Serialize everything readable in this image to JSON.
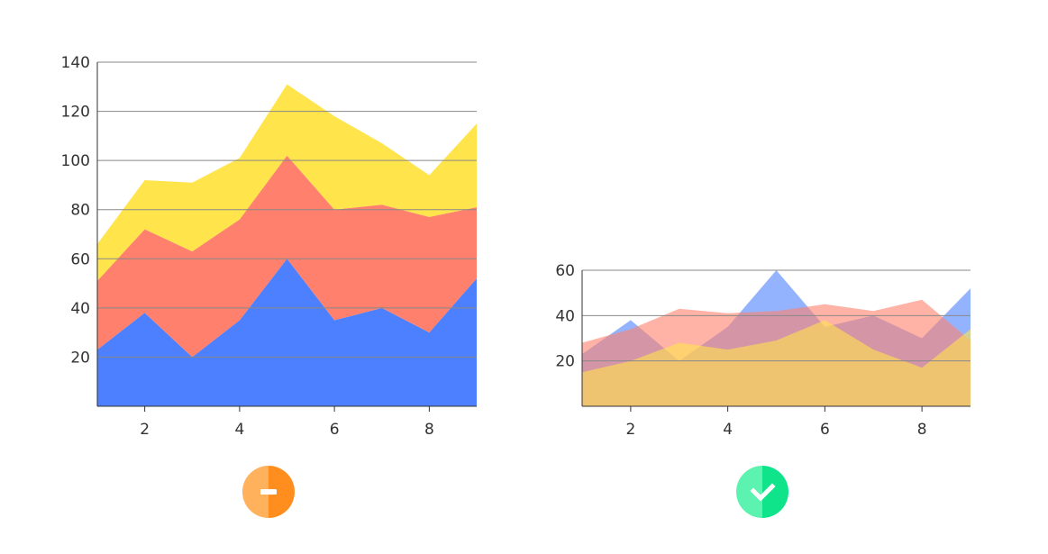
{
  "colors": {
    "blue": "#4c80ff",
    "red": "#ff806c",
    "yellow": "#ffe44c",
    "grid": "#888888",
    "axis": "#333333",
    "badge_bad_light": "#ffb15c",
    "badge_bad_dark": "#ff8e1f",
    "badge_good_light": "#5cf2b0",
    "badge_good_dark": "#10e48a"
  },
  "chart_data": [
    {
      "type": "area",
      "stacked": true,
      "x": [
        1,
        2,
        3,
        4,
        5,
        6,
        7,
        8,
        9
      ],
      "xticks": [
        2,
        4,
        6,
        8
      ],
      "yticks": [
        20,
        40,
        60,
        80,
        100,
        120,
        140
      ],
      "xlim": [
        1,
        9
      ],
      "ylim": [
        0,
        140
      ],
      "grid": true,
      "series": [
        {
          "color": "#4c80ff",
          "values": [
            23,
            38,
            20,
            35,
            60,
            35,
            40,
            30,
            52
          ]
        },
        {
          "color": "#ff806c",
          "values": [
            28,
            34,
            43,
            41,
            42,
            45,
            42,
            47,
            29
          ]
        },
        {
          "color": "#ffe44c",
          "values": [
            15,
            20,
            28,
            25,
            29,
            38,
            25,
            17,
            34
          ]
        }
      ]
    },
    {
      "type": "area",
      "stacked": false,
      "x": [
        1,
        2,
        3,
        4,
        5,
        6,
        7,
        8,
        9
      ],
      "xticks": [
        2,
        4,
        6,
        8
      ],
      "yticks": [
        20,
        40,
        60
      ],
      "xlim": [
        1,
        9
      ],
      "ylim": [
        0,
        60
      ],
      "grid": true,
      "series": [
        {
          "color": "#4c80ff",
          "opacity": 0.6,
          "values": [
            23,
            38,
            20,
            35,
            60,
            35,
            40,
            30,
            52
          ]
        },
        {
          "color": "#ff806c",
          "opacity": 0.6,
          "values": [
            28,
            34,
            43,
            41,
            42,
            45,
            42,
            47,
            29
          ]
        },
        {
          "color": "#ffe44c",
          "opacity": 0.6,
          "values": [
            15,
            20,
            28,
            25,
            29,
            38,
            25,
            17,
            34
          ]
        }
      ]
    }
  ],
  "badges": [
    {
      "icon": "minus-icon",
      "verdict": "bad"
    },
    {
      "icon": "check-icon",
      "verdict": "good"
    }
  ]
}
